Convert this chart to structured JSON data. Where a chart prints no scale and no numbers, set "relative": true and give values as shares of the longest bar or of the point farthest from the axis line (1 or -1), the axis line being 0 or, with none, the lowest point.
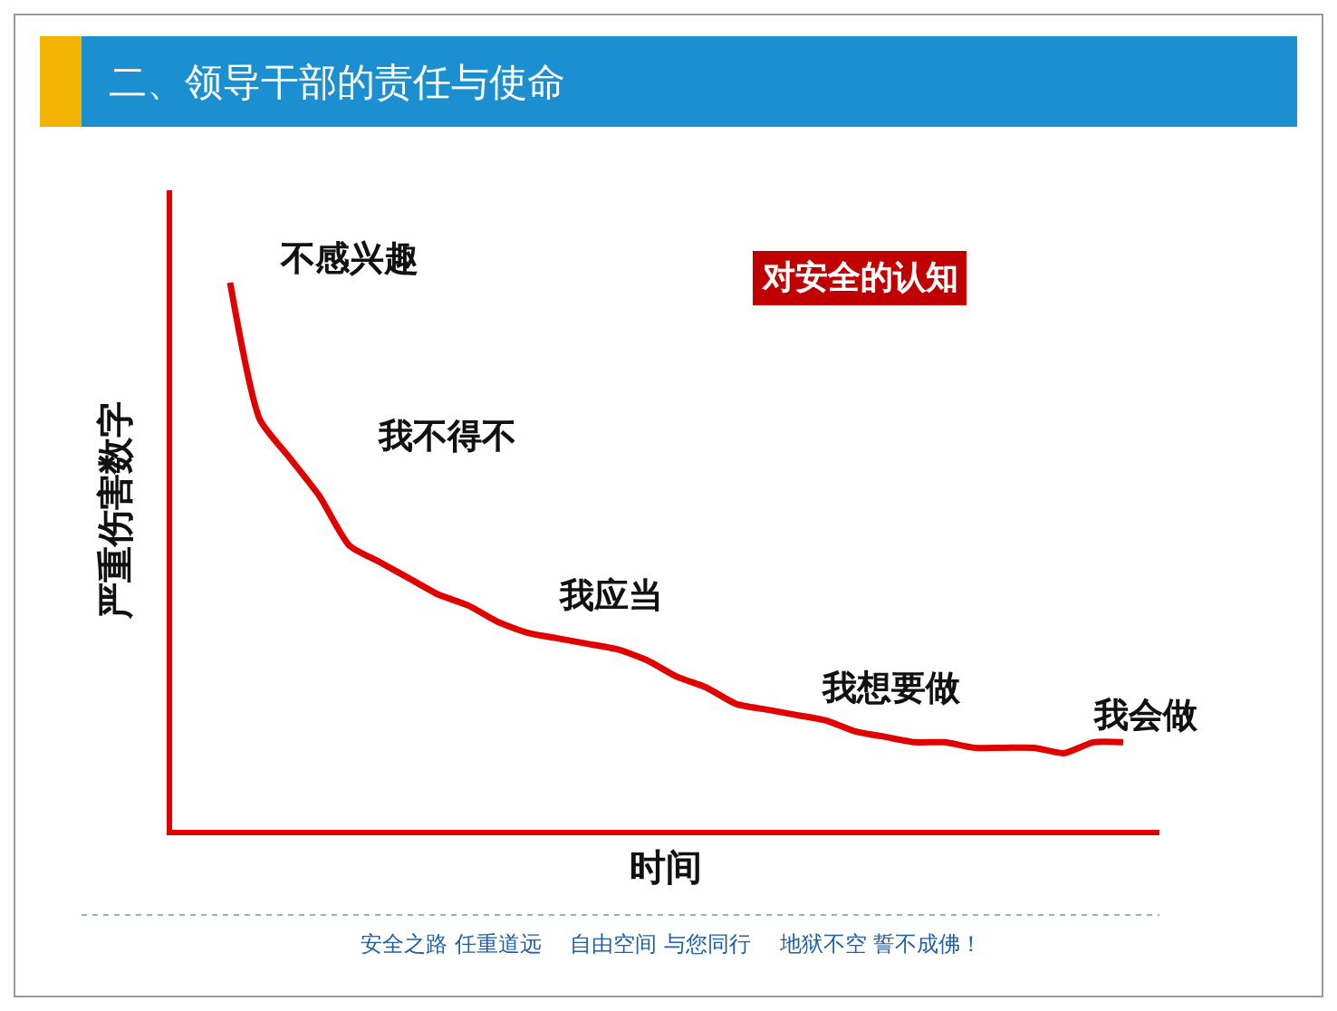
{
  "chart_data": {
    "type": "line",
    "relative": true,
    "title": "二、领导干部的责任与使命",
    "xlabel": "时间",
    "ylabel": "严重伤害数字",
    "categories": [
      null,
      null,
      null,
      null,
      null,
      null,
      null,
      null,
      null,
      null,
      null,
      null,
      null,
      null,
      null,
      null,
      null,
      null,
      null,
      null,
      null,
      null,
      null,
      null,
      null,
      null,
      null,
      null,
      null,
      null,
      null
    ],
    "series": [
      {
        "color": "#e00000",
        "values": [
          1.0,
          0.75,
          0.68,
          0.61,
          0.52,
          0.49,
          0.46,
          0.43,
          0.41,
          0.38,
          0.36,
          0.35,
          0.34,
          0.33,
          0.31,
          0.28,
          0.26,
          0.23,
          0.22,
          0.21,
          0.2,
          0.18,
          0.17,
          0.16,
          0.16,
          0.15,
          0.15,
          0.15,
          0.14,
          0.16,
          0.16
        ]
      }
    ],
    "annotations": [
      "对安全的认知",
      "不感兴趣",
      "我不得不",
      "我应当",
      "我想要做",
      "我会做",
      "安全之路 任重道远　 自由空间 与您同行　 地狱不空 誓不成佛！"
    ]
  }
}
